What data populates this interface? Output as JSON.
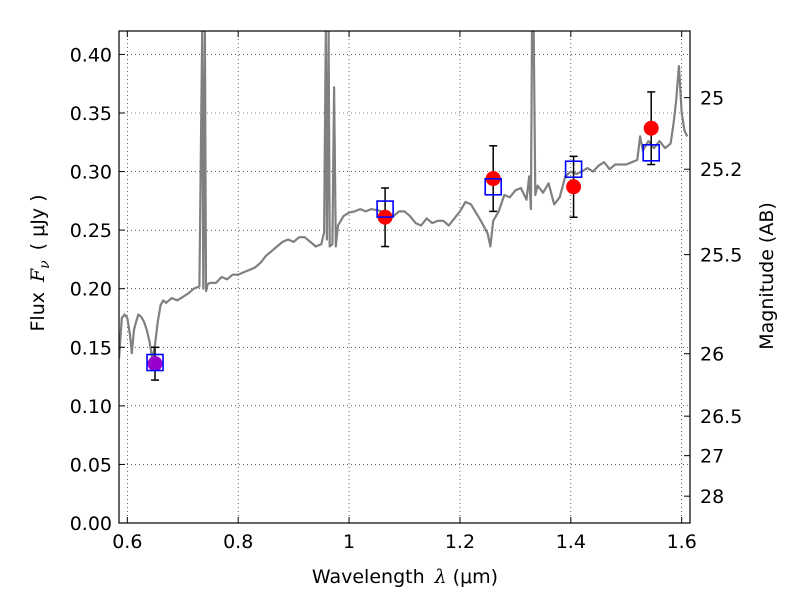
{
  "chart_data": {
    "type": "line",
    "xlabel": "Wavelength",
    "xlabel_symbol": "λ",
    "xlabel_unit": "(μm)",
    "ylabel": "Flux",
    "ylabel_symbol": "F",
    "ylabel_subscript": "ν",
    "ylabel_unit": "( μJy )",
    "y2label": "Magnitude (AB)",
    "xlim": [
      0.585,
      1.615
    ],
    "ylim": [
      0.0,
      0.42
    ],
    "grid": true,
    "grid_style": "dotted",
    "xticks": [
      0.6,
      0.8,
      1.0,
      1.2,
      1.4,
      1.6
    ],
    "xtick_labels": [
      "0.6",
      "0.8",
      "1",
      "1.2",
      "1.4",
      "1.6"
    ],
    "yticks": [
      0.0,
      0.05,
      0.1,
      0.15,
      0.2,
      0.25,
      0.3,
      0.35,
      0.4
    ],
    "ytick_labels": [
      "0.00",
      "0.05",
      "0.10",
      "0.15",
      "0.20",
      "0.25",
      "0.30",
      "0.35",
      "0.40"
    ],
    "y2ticks": [
      {
        "label": "25",
        "flux": 0.3631
      },
      {
        "label": "25.2",
        "flux": 0.302
      },
      {
        "label": "25.5",
        "flux": 0.2291
      },
      {
        "label": "26",
        "flux": 0.1445
      },
      {
        "label": "26.5",
        "flux": 0.0912
      },
      {
        "label": "27",
        "flux": 0.0575
      },
      {
        "label": "28",
        "flux": 0.0229
      }
    ],
    "colors": {
      "model": "#808080",
      "observed": "#ff0000",
      "model_band": "#0000ff",
      "overlap": "#9900cc",
      "errorbar": "#000000"
    },
    "series": [
      {
        "kind": "model-spectrum",
        "x": [
          0.585,
          0.59,
          0.595,
          0.6,
          0.605,
          0.608,
          0.612,
          0.616,
          0.62,
          0.625,
          0.63,
          0.635,
          0.64,
          0.645,
          0.65,
          0.655,
          0.66,
          0.665,
          0.67,
          0.675,
          0.68,
          0.69,
          0.7,
          0.71,
          0.72,
          0.73,
          0.735,
          0.737,
          0.74,
          0.742,
          0.745,
          0.75,
          0.76,
          0.77,
          0.78,
          0.79,
          0.8,
          0.81,
          0.82,
          0.83,
          0.84,
          0.85,
          0.86,
          0.87,
          0.88,
          0.89,
          0.9,
          0.91,
          0.92,
          0.93,
          0.94,
          0.95,
          0.955,
          0.958,
          0.96,
          0.963,
          0.965,
          0.97,
          0.973,
          0.976,
          0.98,
          0.99,
          1.0,
          1.01,
          1.02,
          1.03,
          1.04,
          1.05,
          1.06,
          1.07,
          1.08,
          1.09,
          1.1,
          1.11,
          1.12,
          1.13,
          1.14,
          1.15,
          1.16,
          1.17,
          1.18,
          1.19,
          1.2,
          1.21,
          1.22,
          1.23,
          1.24,
          1.25,
          1.255,
          1.26,
          1.27,
          1.28,
          1.29,
          1.3,
          1.31,
          1.32,
          1.325,
          1.328,
          1.33,
          1.333,
          1.336,
          1.34,
          1.35,
          1.36,
          1.37,
          1.38,
          1.39,
          1.4,
          1.41,
          1.42,
          1.43,
          1.44,
          1.45,
          1.46,
          1.47,
          1.48,
          1.49,
          1.5,
          1.51,
          1.52,
          1.525,
          1.53,
          1.54,
          1.55,
          1.56,
          1.57,
          1.58,
          1.585,
          1.59,
          1.595,
          1.6,
          1.605,
          1.61
        ],
        "y": [
          0.14,
          0.175,
          0.178,
          0.175,
          0.16,
          0.145,
          0.165,
          0.172,
          0.178,
          0.176,
          0.172,
          0.165,
          0.155,
          0.14,
          0.152,
          0.172,
          0.186,
          0.19,
          0.188,
          0.19,
          0.192,
          0.19,
          0.193,
          0.196,
          0.2,
          0.202,
          0.42,
          0.2,
          0.42,
          0.198,
          0.204,
          0.205,
          0.205,
          0.21,
          0.208,
          0.212,
          0.212,
          0.214,
          0.216,
          0.218,
          0.222,
          0.228,
          0.232,
          0.236,
          0.24,
          0.242,
          0.24,
          0.244,
          0.244,
          0.24,
          0.236,
          0.238,
          0.248,
          0.42,
          0.242,
          0.42,
          0.236,
          0.238,
          0.372,
          0.236,
          0.254,
          0.262,
          0.265,
          0.266,
          0.268,
          0.266,
          0.268,
          0.267,
          0.266,
          0.262,
          0.262,
          0.266,
          0.266,
          0.262,
          0.256,
          0.254,
          0.26,
          0.256,
          0.258,
          0.258,
          0.254,
          0.26,
          0.266,
          0.274,
          0.272,
          0.264,
          0.256,
          0.247,
          0.236,
          0.258,
          0.266,
          0.28,
          0.278,
          0.284,
          0.286,
          0.276,
          0.296,
          0.268,
          0.42,
          0.42,
          0.28,
          0.288,
          0.282,
          0.29,
          0.272,
          0.278,
          0.296,
          0.3,
          0.298,
          0.3,
          0.303,
          0.3,
          0.305,
          0.308,
          0.302,
          0.306,
          0.306,
          0.306,
          0.308,
          0.31,
          0.33,
          0.318,
          0.326,
          0.32,
          0.326,
          0.32,
          0.324,
          0.34,
          0.36,
          0.39,
          0.35,
          0.335,
          0.33
        ]
      },
      {
        "kind": "observed",
        "marker": "circle",
        "x": [
          0.65,
          1.065,
          1.26,
          1.405,
          1.545
        ],
        "y": [
          0.136,
          0.261,
          0.294,
          0.287,
          0.337
        ],
        "yerr": [
          0.014,
          0.025,
          0.028,
          0.026,
          0.031
        ]
      },
      {
        "kind": "model-band",
        "marker": "square",
        "x": [
          0.65,
          1.065,
          1.26,
          1.405,
          1.545
        ],
        "y": [
          0.137,
          0.268,
          0.287,
          0.302,
          0.316
        ]
      }
    ]
  }
}
